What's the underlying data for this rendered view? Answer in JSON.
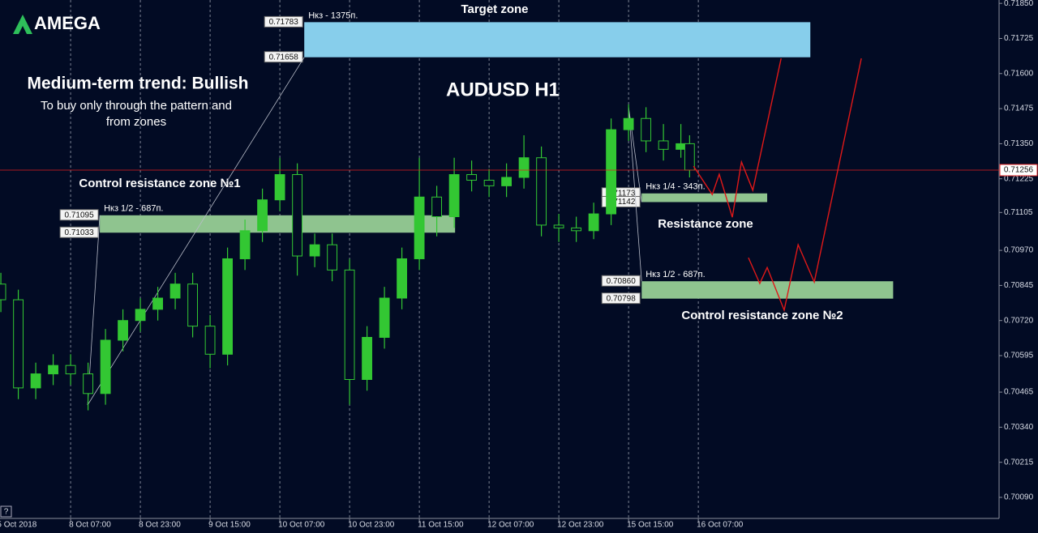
{
  "logo": "AMEGA",
  "help_button": "?",
  "chart_data": {
    "type": "candlestick",
    "title": "AUDUSD H1",
    "subtitle_lines": [
      "Medium-term trend: Bullish",
      "To buy only through the pattern  and",
      "from zones"
    ],
    "x": [
      -16,
      -12,
      -8,
      -4,
      0,
      4,
      8,
      12,
      16,
      20,
      24,
      28,
      32,
      36,
      40,
      44,
      48,
      52,
      56,
      60,
      64,
      68,
      72,
      76,
      80,
      84,
      88,
      92,
      96,
      100,
      104,
      108,
      112,
      116,
      120,
      124,
      128,
      132,
      136,
      140,
      142
    ],
    "open": [
      0.7085,
      0.70794,
      0.7048,
      0.7053,
      0.7056,
      0.7053,
      0.7046,
      0.7065,
      0.7072,
      0.7076,
      0.708,
      0.7085,
      0.707,
      0.706,
      0.7094,
      0.7104,
      0.7115,
      0.7124,
      0.7095,
      0.7099,
      0.709,
      0.7051,
      0.7066,
      0.708,
      0.7094,
      0.7116,
      0.7109,
      0.7124,
      0.7122,
      0.712,
      0.7123,
      0.713,
      0.7106,
      0.7105,
      0.7104,
      0.711,
      0.714,
      0.7144,
      0.7136,
      0.7133,
      0.7135
    ],
    "high": [
      0.7089,
      0.7083,
      0.7057,
      0.706,
      0.706,
      0.7057,
      0.7069,
      0.7076,
      0.708,
      0.7084,
      0.7089,
      0.7089,
      0.7074,
      0.7098,
      0.7108,
      0.7119,
      0.713,
      0.7128,
      0.7103,
      0.7103,
      0.7094,
      0.707,
      0.7084,
      0.7098,
      0.713,
      0.712,
      0.713,
      0.7129,
      0.7126,
      0.7128,
      0.7138,
      0.7134,
      0.711,
      0.7109,
      0.7114,
      0.7144,
      0.7149,
      0.7148,
      0.7142,
      0.7142,
      0.7138
    ],
    "low": [
      0.7075,
      0.7044,
      0.7044,
      0.7049,
      0.7049,
      0.704,
      0.7042,
      0.7061,
      0.7068,
      0.7072,
      0.7076,
      0.7066,
      0.7055,
      0.7056,
      0.709,
      0.71,
      0.7111,
      0.7088,
      0.7091,
      0.7086,
      0.7042,
      0.7047,
      0.7062,
      0.7076,
      0.709,
      0.7102,
      0.7105,
      0.7118,
      0.7116,
      0.7116,
      0.7119,
      0.7102,
      0.71,
      0.71,
      0.7101,
      0.7106,
      0.7136,
      0.7132,
      0.7129,
      0.713,
      0.7123
    ],
    "close": [
      0.70794,
      0.7048,
      0.7053,
      0.7056,
      0.7053,
      0.7046,
      0.7065,
      0.7072,
      0.7076,
      0.708,
      0.7085,
      0.707,
      0.706,
      0.7094,
      0.7104,
      0.7115,
      0.7124,
      0.7095,
      0.7099,
      0.709,
      0.7051,
      0.7066,
      0.708,
      0.7094,
      0.7116,
      0.7109,
      0.7124,
      0.7122,
      0.712,
      0.7123,
      0.713,
      0.7106,
      0.7105,
      0.7104,
      0.711,
      0.714,
      0.7144,
      0.7136,
      0.7133,
      0.7135,
      0.71256
    ],
    "color": "#33c733",
    "xlim": [
      -16.2,
      213
    ],
    "xticks": [
      {
        "value": -16.5,
        "label": "5 Oct 2018"
      },
      {
        "value": 0,
        "label": "8 Oct 07:00"
      },
      {
        "value": 16,
        "label": "8 Oct 23:00"
      },
      {
        "value": 32,
        "label": "9 Oct 15:00"
      },
      {
        "value": 48,
        "label": "10 Oct 07:00"
      },
      {
        "value": 64,
        "label": "10 Oct 23:00"
      },
      {
        "value": 80,
        "label": "11 Oct 15:00"
      },
      {
        "value": 96,
        "label": "12 Oct 07:00"
      },
      {
        "value": 112,
        "label": "12 Oct 23:00"
      },
      {
        "value": 128,
        "label": "15 Oct 15:00"
      },
      {
        "value": 144,
        "label": "16 Oct 07:00"
      }
    ],
    "ylim": [
      0.70015,
      0.71862
    ],
    "yticks": [
      {
        "value": 0.7185,
        "label": "0.71850"
      },
      0.71725,
      {
        "value": 0.716,
        "label": "0.71600"
      },
      0.71475,
      {
        "value": 0.7135,
        "label": "0.71350"
      },
      0.71225,
      0.71105,
      {
        "value": 0.7097,
        "label": "0.70970"
      },
      0.70845,
      {
        "value": 0.7072,
        "label": "0.70720"
      },
      0.70595,
      0.70465,
      {
        "value": 0.7034,
        "label": "0.70340"
      },
      0.70215,
      {
        "value": 0.7009,
        "label": "0.70090"
      }
    ],
    "grid": true,
    "current_price": 0.71256,
    "current_price_color": "#e02020",
    "zones": [
      {
        "name": "Target zone",
        "caption": "Нкз - 1375п.",
        "bounds": [
          0.71783,
          0.71658
        ],
        "x": [
          53.6,
          169.7
        ],
        "color": "#87ceeb"
      },
      {
        "name": "Control resistance zone №1",
        "caption": "Нкз 1/2 - 687п.",
        "bounds": [
          0.71095,
          0.71033
        ],
        "x": [
          6.7,
          88.2
        ],
        "color": "#8fc48f"
      },
      {
        "name": "Resistance zone",
        "caption": "Нкз 1/4 - 343п.",
        "bounds": [
          0.71173,
          0.71142
        ],
        "x": [
          131,
          159.8
        ],
        "color": "#8fc48f"
      },
      {
        "name": "Control resistance zone №2",
        "caption": "Нкз 1/2 - 687п.",
        "bounds": [
          {
            "value": 0.7086,
            "label": "0.70860"
          },
          0.70798
        ],
        "x": [
          131,
          188.7
        ],
        "color": "#8fc48f"
      }
    ],
    "projections": [
      {
        "x": [
          142.9,
          147.2,
          148.8,
          151.8,
          153.9,
          156.5,
          163.0
        ],
        "values": [
          0.7127,
          0.71169,
          0.71241,
          0.71088,
          0.71285,
          0.71184,
          0.71654
        ]
      },
      {
        "x": [
          155.5,
          158.1,
          159.8,
          163.7,
          166.9,
          170.6,
          181.4
        ],
        "values": [
          0.70944,
          0.70852,
          0.70909,
          0.70757,
          0.7099,
          0.70857,
          0.71654
        ]
      }
    ],
    "projection_color": "#e01818",
    "pattern_lines": [
      {
        "x": [
          3.9,
          6.7
        ],
        "values": [
          0.70419,
          0.71095
        ]
      },
      {
        "x": [
          3.9,
          53.6
        ],
        "values": [
          0.70419,
          0.71658
        ]
      },
      {
        "x": [
          128,
          131
        ],
        "values": [
          0.71481,
          0.71142
        ]
      },
      {
        "x": [
          128,
          131
        ],
        "values": [
          0.71481,
          0.7086
        ]
      }
    ],
    "pattern_color": "#b8bcc8"
  }
}
